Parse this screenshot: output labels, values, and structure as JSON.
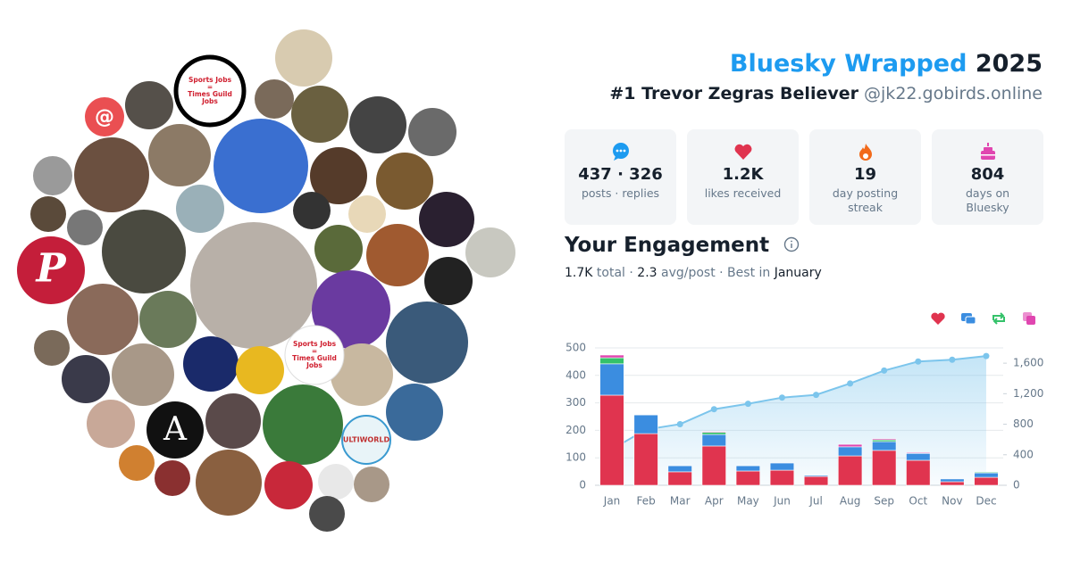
{
  "header": {
    "title": "Bluesky Wrapped",
    "year": "2025",
    "subtitle": "#1 Trevor Zegras Believer",
    "handle": "@jk22.gobirds.online"
  },
  "avatar_texts": {
    "mention": "@",
    "phillies": "P",
    "athletic": "A",
    "ultiworld": "ULTIWORLD",
    "sports_jobs": [
      "Sports Jobs",
      "=",
      "Times Guild",
      "Jobs"
    ]
  },
  "stats": [
    {
      "value": "437 · 326",
      "label": "posts · replies"
    },
    {
      "value": "1.2K",
      "label": "likes received"
    },
    {
      "value": "19",
      "label": "day posting streak"
    },
    {
      "value": "804",
      "label": "days on Bluesky"
    }
  ],
  "engagement": {
    "heading": "Your Engagement",
    "summary": [
      "1.7K",
      " total · ",
      "2.3",
      " avg/post · Best in ",
      "January"
    ]
  },
  "chart_data": {
    "type": "bar",
    "stacked": true,
    "grid": true,
    "categories": [
      "Jan",
      "Feb",
      "Mar",
      "Apr",
      "May",
      "Jun",
      "Jul",
      "Aug",
      "Sep",
      "Oct",
      "Nov",
      "Dec"
    ],
    "ylim": [
      0,
      500
    ],
    "yticks": [
      0,
      100,
      200,
      300,
      400,
      500
    ],
    "y2lim": [
      0,
      1800
    ],
    "y2ticks": [
      0,
      400,
      800,
      {
        "value": 1200,
        "label": "1,200"
      },
      {
        "value": 1600,
        "label": "1,600"
      }
    ],
    "series": [
      {
        "color": "#e0344f",
        "values": [
          328,
          188,
          49,
          143,
          52,
          55,
          32,
          107,
          127,
          91,
          13,
          29
        ]
      },
      {
        "color": "#3b8de0",
        "values": [
          114,
          68,
          22,
          42,
          19,
          26,
          4,
          33,
          32,
          25,
          10,
          16
        ]
      },
      {
        "color": "#34c26a",
        "values": [
          22,
          0,
          0,
          8,
          0,
          0,
          0,
          0,
          6,
          0,
          0,
          3
        ]
      },
      {
        "color": "#e046b0",
        "values": [
          10,
          0,
          0,
          3,
          0,
          0,
          0,
          9,
          4,
          3,
          0,
          0
        ]
      },
      {
        "type": "line",
        "axis": "y2",
        "area": true,
        "color": "#7cc5ec",
        "values": [
          474,
          730,
          801,
          997,
          1068,
          1149,
          1185,
          1334,
          1503,
          1622,
          1645,
          1693
        ]
      }
    ]
  }
}
